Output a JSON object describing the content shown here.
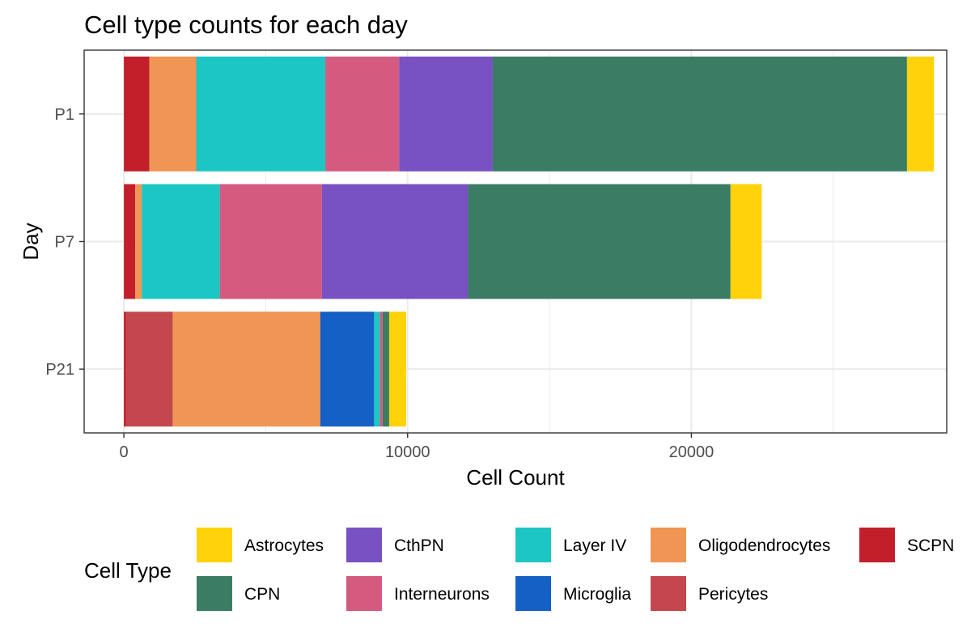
{
  "chart_data": {
    "type": "bar",
    "orientation": "horizontal",
    "stacked": true,
    "title": "Cell type counts for each day",
    "xlabel": "Cell Count",
    "ylabel": "Day",
    "xlim": [
      -1400,
      29000
    ],
    "xticks": [
      0,
      10000,
      20000
    ],
    "xtick_labels": [
      "0",
      "10000",
      "20000"
    ],
    "categories": [
      "P1",
      "P7",
      "P21"
    ],
    "stack_order": [
      "SCPN",
      "Pericytes",
      "Oligodendrocytes",
      "Microglia",
      "Layer IV",
      "Interneurons",
      "CthPN",
      "CPN",
      "Astrocytes"
    ],
    "series": [
      {
        "name": "Astrocytes",
        "color": "#FFD20A",
        "values": [
          950,
          1100,
          600
        ]
      },
      {
        "name": "CPN",
        "color": "#3A7C64",
        "values": [
          14600,
          9250,
          230
        ]
      },
      {
        "name": "CthPN",
        "color": "#7851C2",
        "values": [
          3300,
          5150,
          0
        ]
      },
      {
        "name": "Interneurons",
        "color": "#D45A80",
        "values": [
          2600,
          3600,
          100
        ]
      },
      {
        "name": "Layer IV",
        "color": "#1CC6C3",
        "values": [
          4550,
          2750,
          200
        ]
      },
      {
        "name": "Microglia",
        "color": "#1560C5",
        "values": [
          0,
          0,
          1900
        ]
      },
      {
        "name": "Oligodendrocytes",
        "color": "#F09554",
        "values": [
          1650,
          230,
          5200
        ]
      },
      {
        "name": "Pericytes",
        "color": "#C3474C",
        "values": [
          0,
          0,
          1650
        ]
      },
      {
        "name": "SCPN",
        "color": "#C21F2B",
        "values": [
          900,
          400,
          70
        ]
      }
    ],
    "legend": {
      "title": "Cell Type",
      "position": "bottom",
      "items": [
        "Astrocytes",
        "CPN",
        "CthPN",
        "Interneurons",
        "Layer IV",
        "Microglia",
        "Oligodendrocytes",
        "Pericytes",
        "SCPN"
      ]
    },
    "grid": true,
    "theme": "bw"
  }
}
